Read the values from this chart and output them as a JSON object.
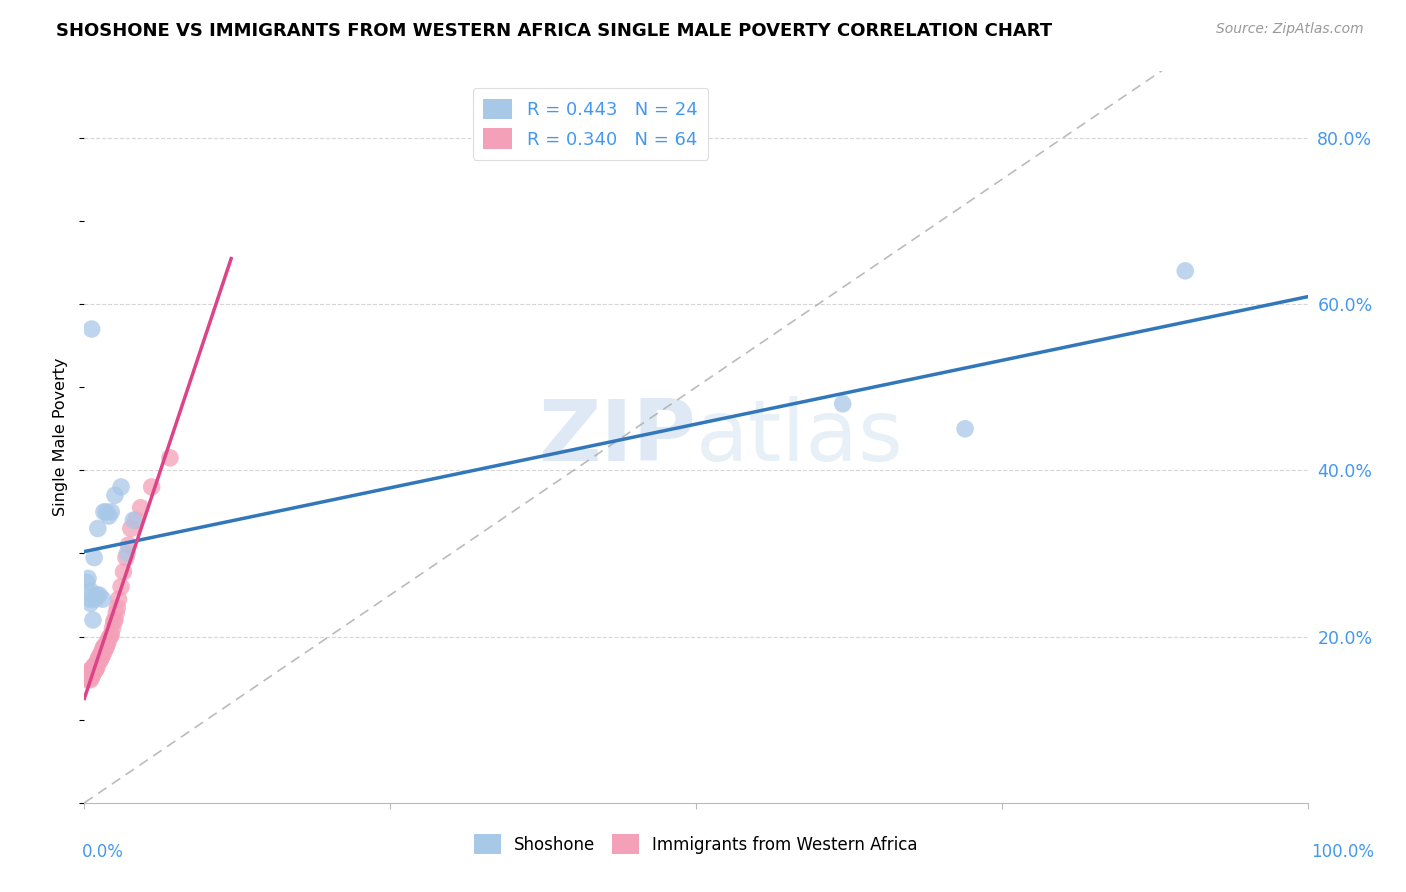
{
  "title": "SHOSHONE VS IMMIGRANTS FROM WESTERN AFRICA SINGLE MALE POVERTY CORRELATION CHART",
  "source": "Source: ZipAtlas.com",
  "ylabel": "Single Male Poverty",
  "legend_label1": "Shoshone",
  "legend_label2": "Immigrants from Western Africa",
  "shoshone_color": "#a8c8e8",
  "immigrants_color": "#f4a0b8",
  "trendline_shoshone_color": "#3377bb",
  "trendline_immigrants_color": "#dd4488",
  "watermark_zip": "ZIP",
  "watermark_atlas": "atlas",
  "R_shoshone": 0.443,
  "N_shoshone": 24,
  "R_immigrants": 0.34,
  "N_immigrants": 64,
  "background_color": "#ffffff",
  "grid_color": "#cccccc",
  "shoshone_x": [
    0.002,
    0.003,
    0.004,
    0.005,
    0.005,
    0.006,
    0.007,
    0.008,
    0.009,
    0.01,
    0.011,
    0.012,
    0.015,
    0.016,
    0.018,
    0.02,
    0.022,
    0.025,
    0.03,
    0.035,
    0.04,
    0.62,
    0.72,
    0.9
  ],
  "shoshone_y": [
    0.265,
    0.27,
    0.245,
    0.255,
    0.24,
    0.57,
    0.22,
    0.295,
    0.245,
    0.25,
    0.33,
    0.25,
    0.245,
    0.35,
    0.35,
    0.345,
    0.35,
    0.37,
    0.38,
    0.3,
    0.34,
    0.48,
    0.45,
    0.64
  ],
  "immigrants_x": [
    0.001,
    0.002,
    0.002,
    0.003,
    0.003,
    0.003,
    0.004,
    0.004,
    0.004,
    0.005,
    0.005,
    0.005,
    0.005,
    0.005,
    0.005,
    0.006,
    0.006,
    0.006,
    0.007,
    0.007,
    0.007,
    0.008,
    0.008,
    0.008,
    0.009,
    0.009,
    0.01,
    0.01,
    0.01,
    0.011,
    0.011,
    0.012,
    0.012,
    0.013,
    0.013,
    0.014,
    0.014,
    0.015,
    0.015,
    0.015,
    0.016,
    0.016,
    0.017,
    0.018,
    0.018,
    0.019,
    0.02,
    0.021,
    0.022,
    0.023,
    0.024,
    0.025,
    0.026,
    0.027,
    0.028,
    0.03,
    0.032,
    0.034,
    0.036,
    0.038,
    0.042,
    0.046,
    0.055,
    0.07
  ],
  "immigrants_y": [
    0.15,
    0.148,
    0.152,
    0.15,
    0.152,
    0.155,
    0.15,
    0.152,
    0.155,
    0.148,
    0.15,
    0.152,
    0.155,
    0.158,
    0.16,
    0.152,
    0.155,
    0.158,
    0.155,
    0.158,
    0.162,
    0.158,
    0.16,
    0.165,
    0.16,
    0.165,
    0.162,
    0.165,
    0.168,
    0.168,
    0.172,
    0.17,
    0.175,
    0.172,
    0.178,
    0.175,
    0.18,
    0.178,
    0.182,
    0.185,
    0.182,
    0.188,
    0.185,
    0.188,
    0.192,
    0.192,
    0.198,
    0.2,
    0.202,
    0.21,
    0.218,
    0.22,
    0.228,
    0.235,
    0.245,
    0.26,
    0.278,
    0.295,
    0.31,
    0.33,
    0.34,
    0.355,
    0.38,
    0.415
  ],
  "xlim": [
    0.0,
    1.0
  ],
  "ylim": [
    0.0,
    0.88
  ],
  "ytick_vals": [
    0.2,
    0.4,
    0.6,
    0.8
  ],
  "ytick_labels": [
    "20.0%",
    "40.0%",
    "60.0%",
    "80.0%"
  ]
}
